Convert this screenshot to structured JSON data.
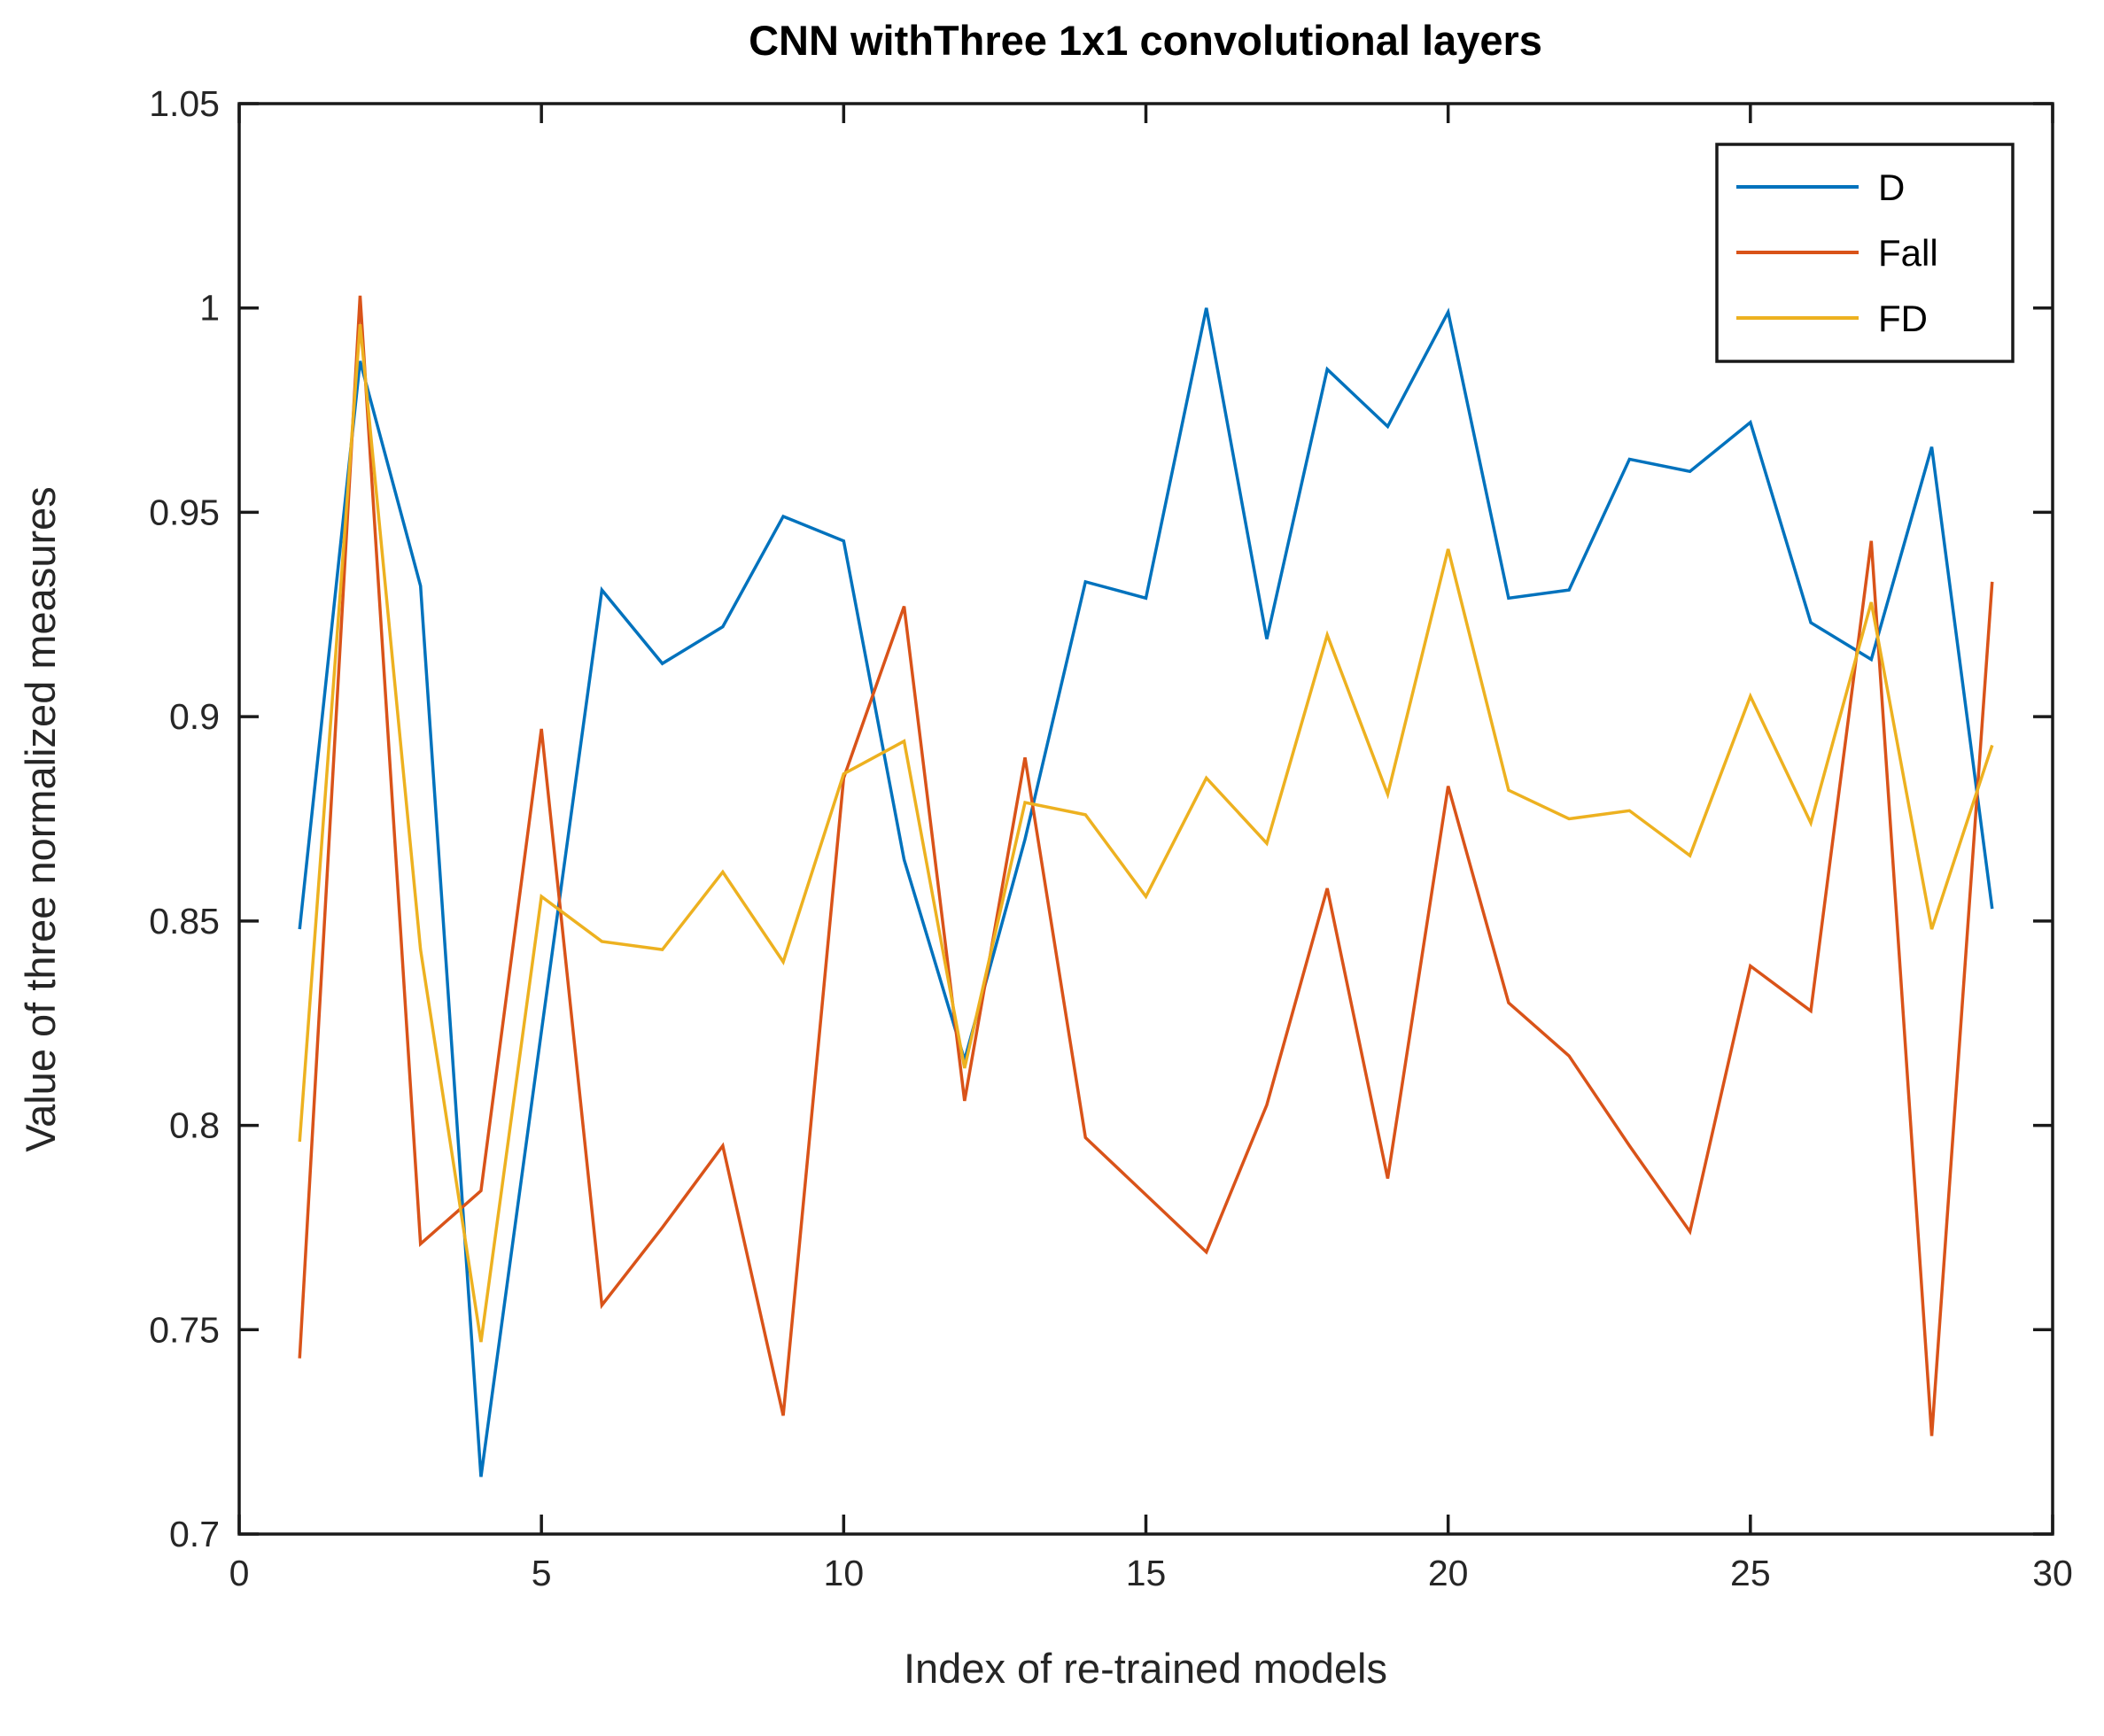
{
  "chart_data": {
    "type": "line",
    "title": "CNN withThree 1x1 convolutional layers",
    "xlabel": "Index of re-trained models",
    "ylabel": "Value of three normalized measures",
    "xlim": [
      0,
      30
    ],
    "ylim": [
      0.7,
      1.05
    ],
    "xticks": {
      "values": [
        0,
        5,
        10,
        15,
        20,
        25,
        30
      ],
      "labels": [
        "0",
        "5",
        "10",
        "15",
        "20",
        "25",
        "30"
      ]
    },
    "yticks": {
      "values": [
        0.7,
        0.75,
        0.8,
        0.85,
        0.9,
        0.95,
        1.0,
        1.05
      ],
      "labels": [
        "0.7",
        "0.75",
        "0.8",
        "0.85",
        "0.9",
        "0.95",
        "1",
        "1.05"
      ]
    },
    "grid": false,
    "legend_position": "top-right",
    "axis_color": "#1a1a1a",
    "x": [
      1,
      2,
      3,
      4,
      5,
      6,
      7,
      8,
      9,
      10,
      11,
      12,
      13,
      14,
      15,
      16,
      17,
      18,
      19,
      20,
      21,
      22,
      23,
      24,
      25,
      26,
      27,
      28,
      29
    ],
    "series": [
      {
        "name": "D",
        "color": "#0072BD",
        "values": [
          0.848,
          0.987,
          0.932,
          0.714,
          0.823,
          0.931,
          0.913,
          0.922,
          0.949,
          0.943,
          0.865,
          0.816,
          0.87,
          0.933,
          0.929,
          1.0,
          0.919,
          0.985,
          0.971,
          0.999,
          0.929,
          0.931,
          0.963,
          0.96,
          0.972,
          0.923,
          0.914,
          0.966,
          0.853
        ]
      },
      {
        "name": "Fall",
        "color": "#D95319",
        "values": [
          0.743,
          1.003,
          0.771,
          0.784,
          0.897,
          0.756,
          0.775,
          0.795,
          0.729,
          0.885,
          0.927,
          0.806,
          0.89,
          0.797,
          0.783,
          0.769,
          0.805,
          0.858,
          0.787,
          0.883,
          0.83,
          0.817,
          0.795,
          0.774,
          0.839,
          0.828,
          0.943,
          0.724,
          0.933
        ]
      },
      {
        "name": "FD",
        "color": "#EDB120",
        "values": [
          0.796,
          0.996,
          0.843,
          0.747,
          0.856,
          0.845,
          0.843,
          0.862,
          0.84,
          0.886,
          0.894,
          0.814,
          0.879,
          0.876,
          0.856,
          0.885,
          0.869,
          0.92,
          0.881,
          0.941,
          0.882,
          0.875,
          0.877,
          0.866,
          0.905,
          0.874,
          0.928,
          0.848,
          0.893
        ]
      }
    ]
  }
}
